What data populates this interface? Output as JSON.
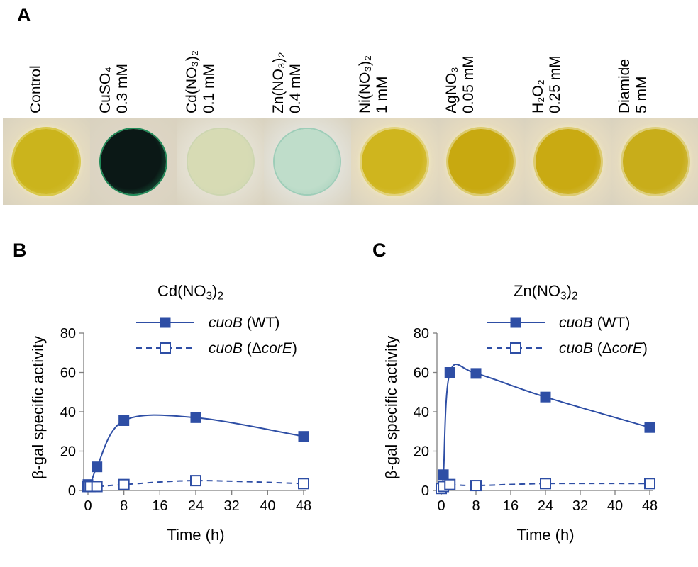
{
  "panels": {
    "a": {
      "letter": "A",
      "conditions": [
        {
          "line1": "Control",
          "line2": "",
          "plate": "#e6dcc0",
          "spot": "#cbb41c",
          "ring": "#d9c84a",
          "fuzzy": true
        },
        {
          "line1": "CuSO₄",
          "line2": "0.3 mM",
          "plate": "#ddd5c4",
          "spot": "#0b1816",
          "ring": "#1f8a58",
          "fuzzy": false
        },
        {
          "line1": "Cd(NO₃)₂",
          "line2": "0.1 mM",
          "plate": "#e4e0d2",
          "spot": "#d7dbb4",
          "ring": "#cdd6b0",
          "fuzzy": false
        },
        {
          "line1": "Zn(NO₃)₂",
          "line2": "0.4 mM",
          "plate": "#e2e1d8",
          "spot": "#bfddca",
          "ring": "#9dcdb8",
          "fuzzy": false
        },
        {
          "line1": "Ni(NO₃)₂",
          "line2": "1 mM",
          "plate": "#e9dec0",
          "spot": "#cfb51e",
          "ring": "#e2d27a",
          "fuzzy": true
        },
        {
          "line1": "AgNO₃",
          "line2": "0.05 mM",
          "plate": "#e8dcbf",
          "spot": "#c8a910",
          "ring": "#dccb6e",
          "fuzzy": true
        },
        {
          "line1": "H₂O₂",
          "line2": "0.25 mM",
          "plate": "#e8ddc0",
          "spot": "#c9aa12",
          "ring": "#ddcb70",
          "fuzzy": true
        },
        {
          "line1": "Diamide",
          "line2": "5 mM",
          "plate": "#e7dcc0",
          "spot": "#c8ad1a",
          "ring": "#ddce7a",
          "fuzzy": true
        }
      ]
    },
    "b": {
      "letter": "B",
      "title_base": "Cd(NO",
      "title_sub1": "3",
      "title_close": ")",
      "title_sub2": "2"
    },
    "c": {
      "letter": "C",
      "title_base": "Zn(NO",
      "title_sub1": "3",
      "title_close": ")",
      "title_sub2": "2"
    }
  },
  "colors": {
    "series": "#2e4ea5",
    "axis": "#7f7f7f"
  },
  "chart_data": [
    {
      "type": "line",
      "title": "Cd(NO3)2",
      "xlabel": "Time (h)",
      "ylabel": "β-gal specific activity",
      "xlim": [
        0,
        48
      ],
      "ylim": [
        0,
        80
      ],
      "xticks": [
        0,
        8,
        16,
        24,
        32,
        40,
        48
      ],
      "yticks": [
        0,
        20,
        40,
        60,
        80
      ],
      "legend": "top-right",
      "series": [
        {
          "name": "cuoB (WT)",
          "name_italic": "cuoB",
          "name_rest": " (WT)",
          "marker": "filled-square",
          "line": "solid",
          "x": [
            0,
            0.5,
            2,
            8,
            24,
            48
          ],
          "y": [
            3,
            2,
            12,
            35.5,
            37,
            27.5
          ]
        },
        {
          "name": "cuoB (ΔcorE)",
          "name_italic": "cuoB",
          "name_rest": " (Δ",
          "name_italic2": "corE",
          "name_end": ")",
          "marker": "open-square",
          "line": "dashed",
          "x": [
            0,
            0.5,
            2,
            8,
            24,
            48
          ],
          "y": [
            2,
            2,
            2,
            3,
            5,
            3.5
          ]
        }
      ]
    },
    {
      "type": "line",
      "title": "Zn(NO3)2",
      "xlabel": "Time (h)",
      "ylabel": "β-gal specific activity",
      "xlim": [
        0,
        48
      ],
      "ylim": [
        0,
        80
      ],
      "xticks": [
        0,
        8,
        16,
        24,
        32,
        40,
        48
      ],
      "yticks": [
        0,
        20,
        40,
        60,
        80
      ],
      "legend": "top-right",
      "series": [
        {
          "name": "cuoB (WT)",
          "name_italic": "cuoB",
          "name_rest": " (WT)",
          "marker": "filled-square",
          "line": "solid",
          "x": [
            0,
            0.5,
            2,
            8,
            24,
            48
          ],
          "y": [
            1,
            8,
            60,
            59.5,
            47.5,
            32
          ]
        },
        {
          "name": "cuoB (ΔcorE)",
          "name_italic": "cuoB",
          "name_rest": " (Δ",
          "name_italic2": "corE",
          "name_end": ")",
          "marker": "open-square",
          "line": "dashed",
          "x": [
            0,
            0.5,
            2,
            8,
            24,
            48
          ],
          "y": [
            1,
            2,
            3,
            2.5,
            3.5,
            3.5
          ]
        }
      ]
    }
  ]
}
